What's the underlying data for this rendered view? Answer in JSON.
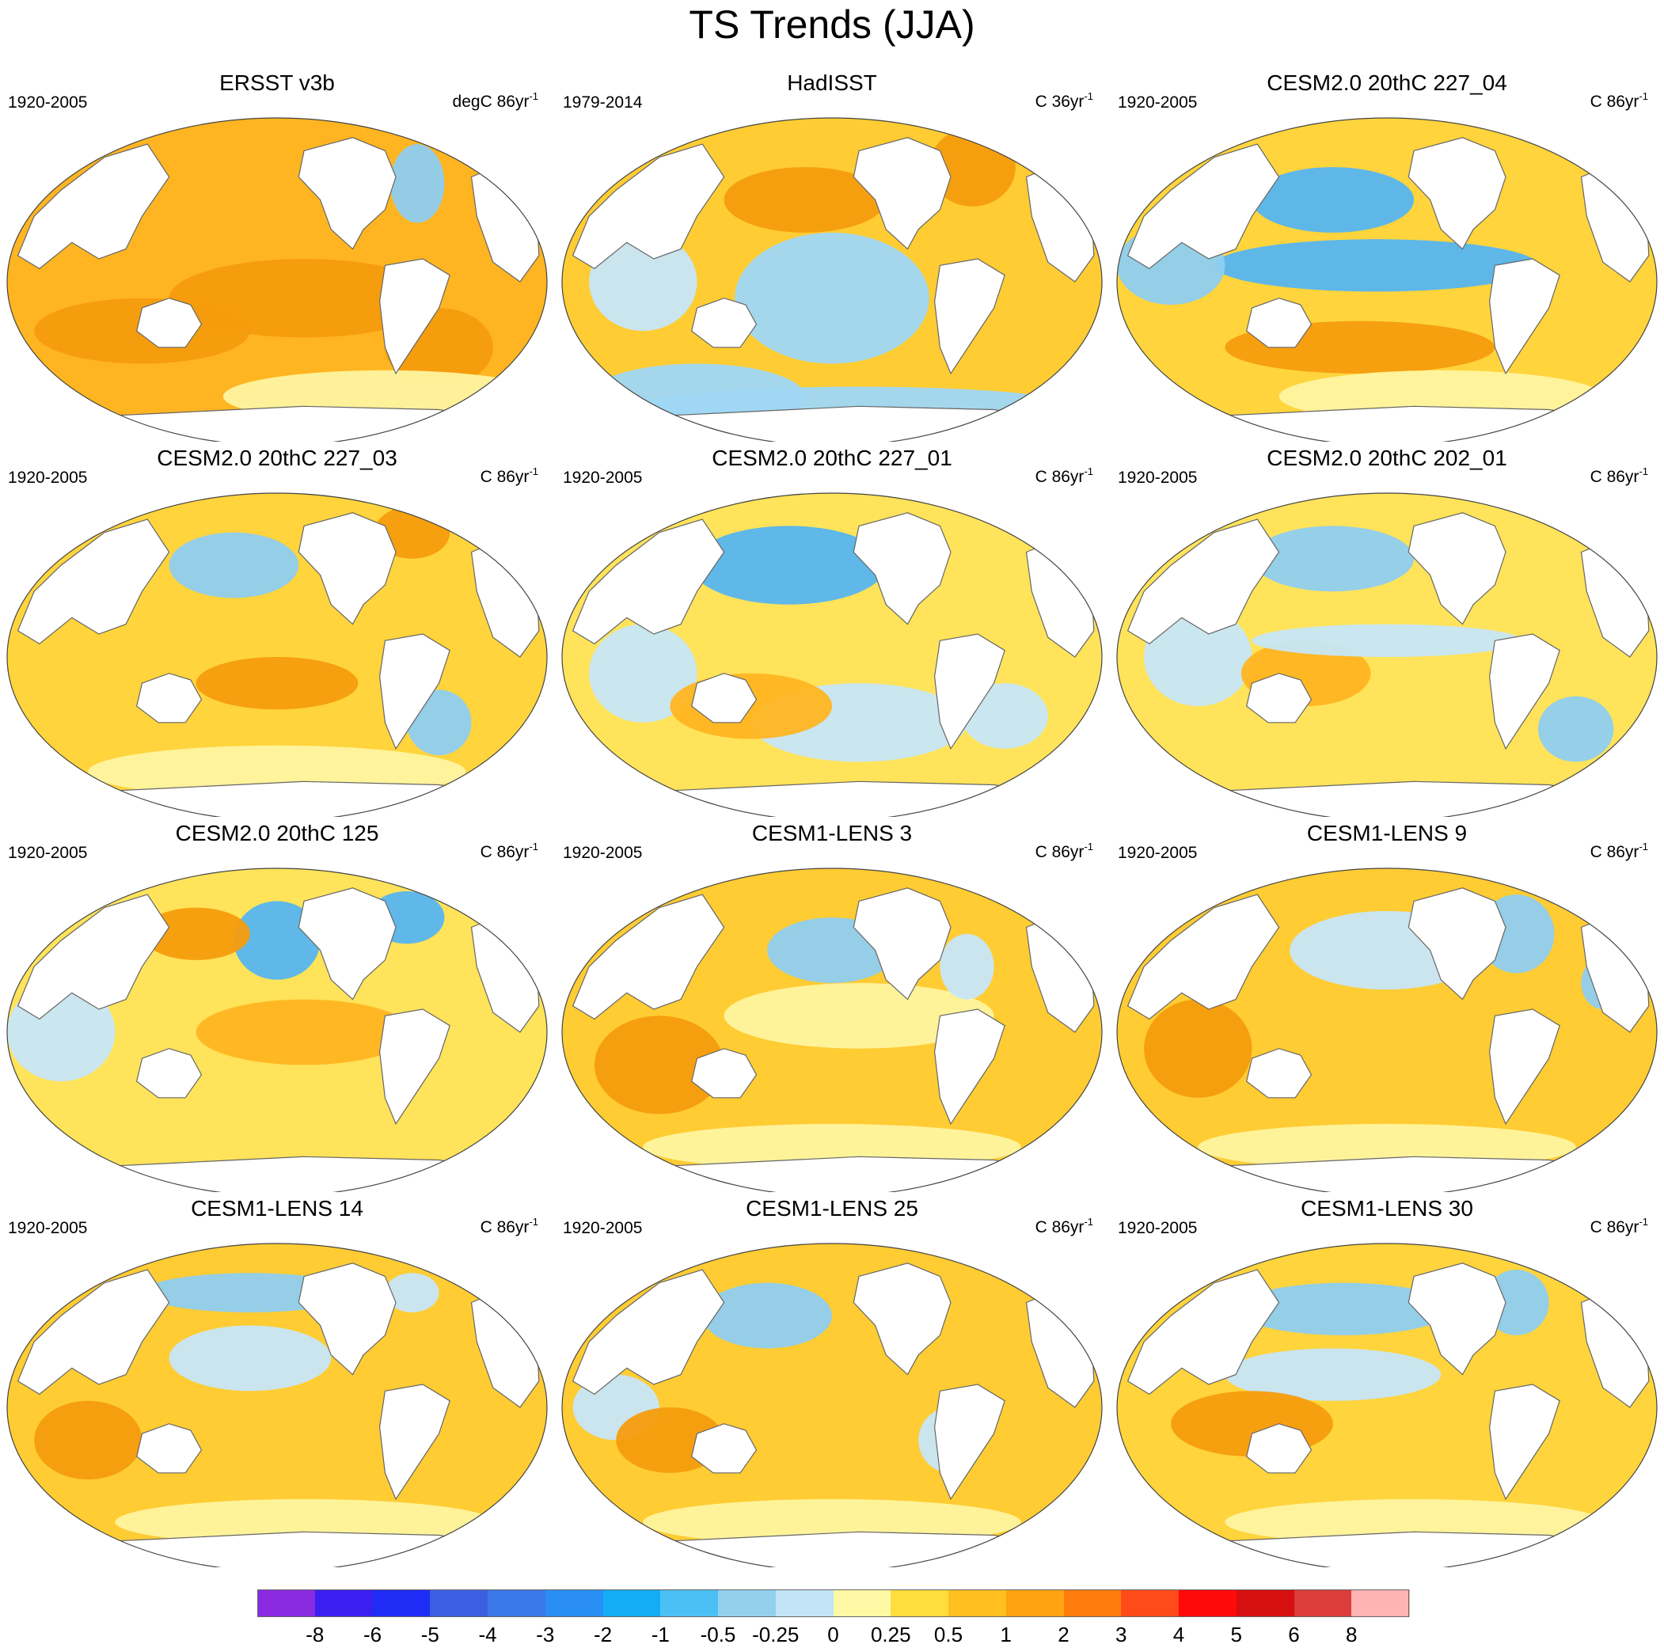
{
  "title": "TS Trends (JJA)",
  "panels": [
    {
      "name": "ERSST v3b",
      "period": "1920-2005",
      "units": "degC 86yr",
      "exp": "-1",
      "base": "#ffb521",
      "anom": [
        [
          "#f59c0d",
          0.55,
          0.55,
          0.25,
          0.12
        ],
        [
          "#f59c0d",
          0.25,
          0.65,
          0.2,
          0.1
        ],
        [
          "#f59c0d",
          0.8,
          0.7,
          0.1,
          0.12
        ],
        [
          "#8fcdf0",
          0.76,
          0.2,
          0.05,
          0.12
        ],
        [
          "#fff4a0",
          0.7,
          0.85,
          0.3,
          0.08
        ]
      ]
    },
    {
      "name": "HadISST",
      "period": "1979-2014",
      "units": "C 36yr",
      "exp": "-1",
      "base": "#ffcc33",
      "anom": [
        [
          "#9fd7f5",
          0.5,
          0.55,
          0.18,
          0.2
        ],
        [
          "#9fd7f5",
          0.55,
          0.9,
          0.45,
          0.08
        ],
        [
          "#9fd7f5",
          0.25,
          0.85,
          0.2,
          0.1
        ],
        [
          "#f59c0d",
          0.45,
          0.25,
          0.15,
          0.1
        ],
        [
          "#f59c0d",
          0.76,
          0.15,
          0.08,
          0.12
        ],
        [
          "#c7e6f8",
          0.15,
          0.5,
          0.1,
          0.15
        ]
      ]
    },
    {
      "name": "CESM2.0 20thC 227_04",
      "period": "1920-2005",
      "units": "C 86yr",
      "exp": "-1",
      "base": "#ffd43c",
      "anom": [
        [
          "#56b5f0",
          0.48,
          0.45,
          0.3,
          0.08
        ],
        [
          "#56b5f0",
          0.4,
          0.25,
          0.15,
          0.1
        ],
        [
          "#f59c0d",
          0.45,
          0.7,
          0.25,
          0.08
        ],
        [
          "#8fcdf0",
          0.1,
          0.45,
          0.1,
          0.12
        ],
        [
          "#fff4a0",
          0.6,
          0.85,
          0.3,
          0.08
        ]
      ]
    },
    {
      "name": "CESM2.0 20thC 227_03",
      "period": "1920-2005",
      "units": "C 86yr",
      "exp": "-1",
      "base": "#ffd43c",
      "anom": [
        [
          "#8fcdf0",
          0.42,
          0.22,
          0.12,
          0.1
        ],
        [
          "#f59c0d",
          0.5,
          0.58,
          0.15,
          0.08
        ],
        [
          "#8fcdf0",
          0.8,
          0.7,
          0.06,
          0.1
        ],
        [
          "#f59c0d",
          0.75,
          0.12,
          0.07,
          0.08
        ],
        [
          "#fff4a0",
          0.5,
          0.85,
          0.35,
          0.08
        ]
      ]
    },
    {
      "name": "CESM2.0 20thC 227_01",
      "period": "1920-2005",
      "units": "C 86yr",
      "exp": "-1",
      "base": "#ffe35a",
      "anom": [
        [
          "#56b5f0",
          0.42,
          0.22,
          0.18,
          0.12
        ],
        [
          "#c7e6f8",
          0.55,
          0.7,
          0.2,
          0.12
        ],
        [
          "#c7e6f8",
          0.15,
          0.55,
          0.1,
          0.15
        ],
        [
          "#c7e6f8",
          0.82,
          0.68,
          0.08,
          0.1
        ],
        [
          "#ffb521",
          0.35,
          0.65,
          0.15,
          0.1
        ]
      ]
    },
    {
      "name": "CESM2.0 20thC 202_01",
      "period": "1920-2005",
      "units": "C 86yr",
      "exp": "-1",
      "base": "#ffe35a",
      "anom": [
        [
          "#8fcdf0",
          0.4,
          0.2,
          0.15,
          0.1
        ],
        [
          "#8fcdf0",
          0.85,
          0.72,
          0.07,
          0.1
        ],
        [
          "#c7e6f8",
          0.15,
          0.5,
          0.1,
          0.15
        ],
        [
          "#ffb521",
          0.35,
          0.55,
          0.12,
          0.1
        ],
        [
          "#c7e6f8",
          0.5,
          0.45,
          0.25,
          0.05
        ]
      ]
    },
    {
      "name": "CESM2.0 20thC 125",
      "period": "1920-2005",
      "units": "C 86yr",
      "exp": "-1",
      "base": "#ffe35a",
      "anom": [
        [
          "#56b5f0",
          0.5,
          0.22,
          0.08,
          0.12
        ],
        [
          "#f59c0d",
          0.35,
          0.2,
          0.1,
          0.08
        ],
        [
          "#56b5f0",
          0.74,
          0.15,
          0.07,
          0.08
        ],
        [
          "#c7e6f8",
          0.1,
          0.5,
          0.1,
          0.15
        ],
        [
          "#ffb521",
          0.55,
          0.5,
          0.2,
          0.1
        ]
      ]
    },
    {
      "name": "CESM1-LENS 3",
      "period": "1920-2005",
      "units": "C 86yr",
      "exp": "-1",
      "base": "#ffcc33",
      "anom": [
        [
          "#8fcdf0",
          0.5,
          0.25,
          0.12,
          0.1
        ],
        [
          "#f59c0d",
          0.18,
          0.6,
          0.12,
          0.15
        ],
        [
          "#fff4a0",
          0.55,
          0.45,
          0.25,
          0.1
        ],
        [
          "#c7e6f8",
          0.75,
          0.3,
          0.05,
          0.1
        ],
        [
          "#fff4a0",
          0.5,
          0.85,
          0.35,
          0.07
        ]
      ]
    },
    {
      "name": "CESM1-LENS 9",
      "period": "1920-2005",
      "units": "C 86yr",
      "exp": "-1",
      "base": "#ffcc33",
      "anom": [
        [
          "#c7e6f8",
          0.5,
          0.25,
          0.18,
          0.12
        ],
        [
          "#8fcdf0",
          0.74,
          0.2,
          0.07,
          0.12
        ],
        [
          "#f59c0d",
          0.15,
          0.55,
          0.1,
          0.15
        ],
        [
          "#fff4a0",
          0.5,
          0.85,
          0.35,
          0.07
        ],
        [
          "#8fcdf0",
          0.9,
          0.35,
          0.04,
          0.08
        ]
      ]
    },
    {
      "name": "CESM1-LENS 14",
      "period": "1920-2005",
      "units": "C 86yr",
      "exp": "-1",
      "base": "#ffcc33",
      "anom": [
        [
          "#8fcdf0",
          0.45,
          0.15,
          0.2,
          0.06
        ],
        [
          "#c7e6f8",
          0.45,
          0.35,
          0.15,
          0.1
        ],
        [
          "#f59c0d",
          0.15,
          0.6,
          0.1,
          0.12
        ],
        [
          "#fff4a0",
          0.55,
          0.85,
          0.35,
          0.07
        ],
        [
          "#c7e6f8",
          0.75,
          0.15,
          0.05,
          0.06
        ]
      ]
    },
    {
      "name": "CESM1-LENS 25",
      "period": "1920-2005",
      "units": "C 86yr",
      "exp": "-1",
      "base": "#ffcc33",
      "anom": [
        [
          "#8fcdf0",
          0.38,
          0.22,
          0.12,
          0.1
        ],
        [
          "#c7e6f8",
          0.1,
          0.5,
          0.08,
          0.1
        ],
        [
          "#fff4a0",
          0.5,
          0.85,
          0.35,
          0.07
        ],
        [
          "#f59c0d",
          0.2,
          0.6,
          0.1,
          0.1
        ],
        [
          "#c7e6f8",
          0.72,
          0.6,
          0.06,
          0.1
        ]
      ]
    },
    {
      "name": "CESM1-LENS 30",
      "period": "1920-2005",
      "units": "C 86yr",
      "exp": "-1",
      "base": "#ffd43c",
      "anom": [
        [
          "#8fcdf0",
          0.42,
          0.2,
          0.2,
          0.08
        ],
        [
          "#c7e6f8",
          0.4,
          0.4,
          0.2,
          0.08
        ],
        [
          "#f59c0d",
          0.25,
          0.55,
          0.15,
          0.1
        ],
        [
          "#8fcdf0",
          0.74,
          0.18,
          0.06,
          0.1
        ],
        [
          "#fff4a0",
          0.55,
          0.85,
          0.35,
          0.07
        ]
      ]
    }
  ],
  "colorbar": {
    "colors": [
      "#8a2be2",
      "#3a1ff0",
      "#1e2cf5",
      "#3c5ee0",
      "#3b78e8",
      "#2a8ff5",
      "#12adf5",
      "#4bc0f5",
      "#93d0ee",
      "#c2e4f6",
      "#fff8a5",
      "#ffdd3c",
      "#ffbf1f",
      "#ffa310",
      "#ff7d0d",
      "#ff4a1a",
      "#ff0a0a",
      "#d60f0f",
      "#dc3c3c",
      "#ffb3b3"
    ],
    "labels": [
      "-8",
      "-6",
      "-5",
      "-4",
      "-3",
      "-2",
      "-1",
      "-0.5",
      "-0.25",
      "0",
      "0.25",
      "0.5",
      "1",
      "2",
      "3",
      "4",
      "5",
      "6",
      "8"
    ]
  }
}
